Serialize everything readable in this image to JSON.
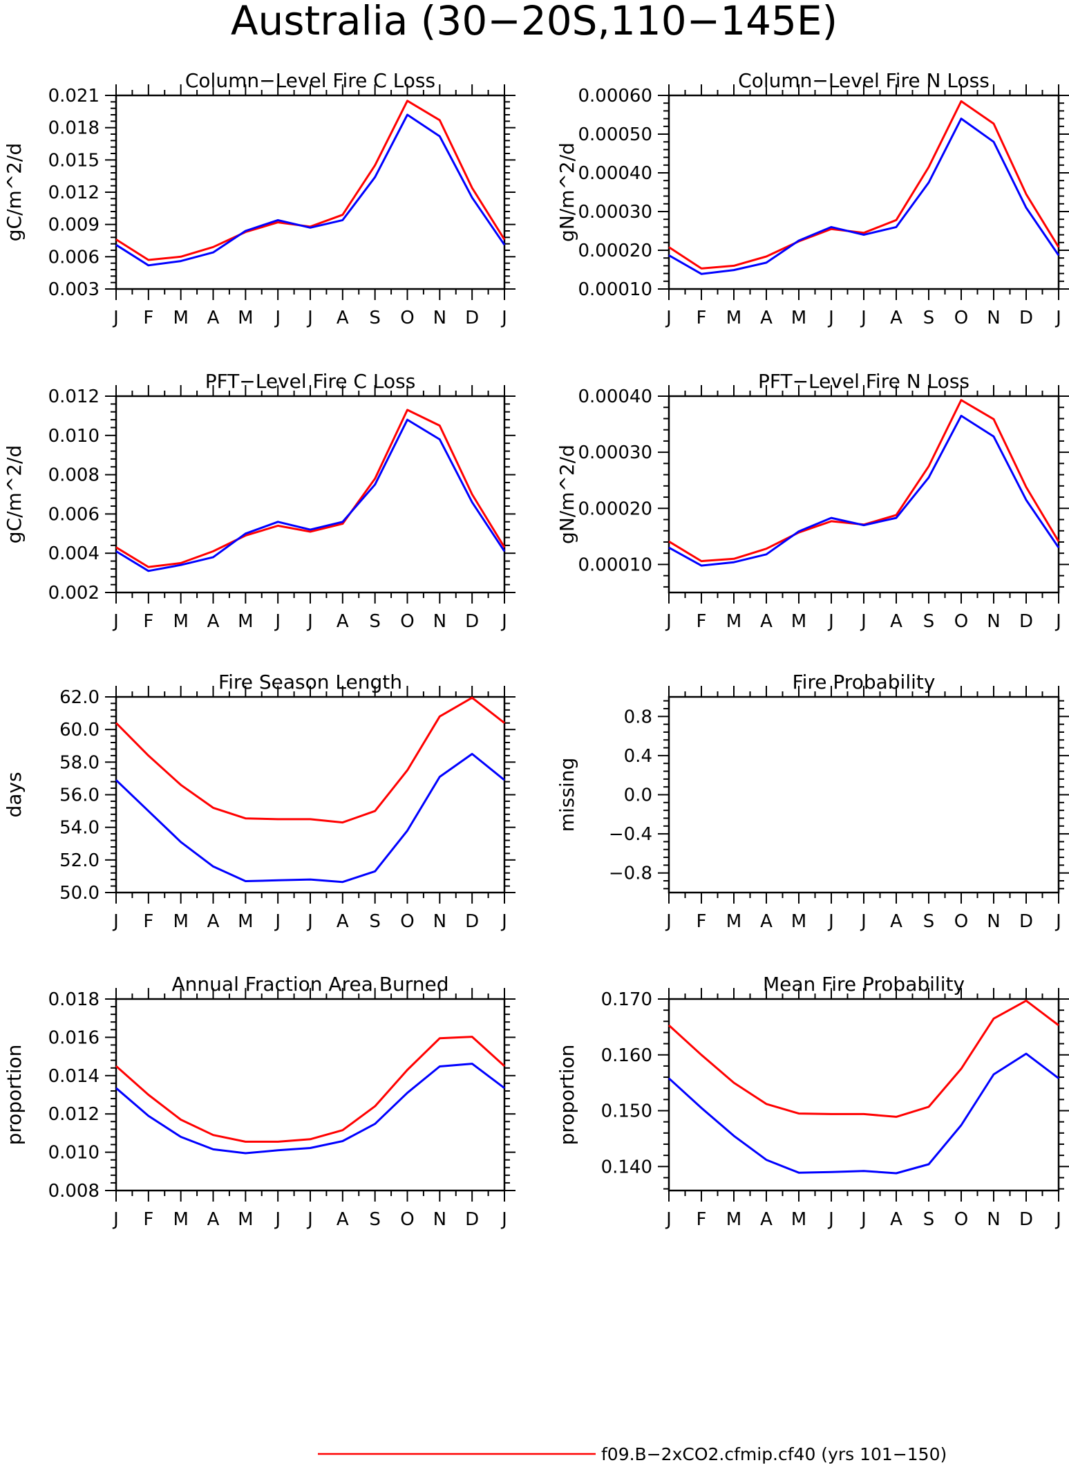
{
  "title": "Australia (30−20S,110−145E)",
  "legend": [
    {
      "label": "f09.B−2xCO2.cfmip.cf40 (yrs 101−150)",
      "color": "#ff0000"
    }
  ],
  "chart_data": [
    {
      "type": "line",
      "title": "Column−Level Fire C Loss",
      "ylabel": "gC/m^2/d",
      "categories": [
        "J",
        "F",
        "M",
        "A",
        "M",
        "J",
        "J",
        "A",
        "S",
        "O",
        "N",
        "D",
        "J"
      ],
      "yticks": [
        "0.003",
        "0.006",
        "0.009",
        "0.012",
        "0.015",
        "0.018",
        "0.021"
      ],
      "ylim": [
        0.003,
        0.021
      ],
      "series": [
        {
          "color": "#ff0000",
          "values": [
            0.0076,
            0.0057,
            0.006,
            0.0069,
            0.0083,
            0.0092,
            0.0088,
            0.0099,
            0.0145,
            0.0205,
            0.0187,
            0.0124,
            0.0076
          ]
        },
        {
          "color": "#0000ff",
          "values": [
            0.0071,
            0.0052,
            0.0056,
            0.0064,
            0.0084,
            0.0094,
            0.0087,
            0.0094,
            0.0134,
            0.0192,
            0.0172,
            0.0115,
            0.0071
          ]
        }
      ]
    },
    {
      "type": "line",
      "title": "Column−Level Fire N Loss",
      "ylabel": "gN/m^2/d",
      "categories": [
        "J",
        "F",
        "M",
        "A",
        "M",
        "J",
        "J",
        "A",
        "S",
        "O",
        "N",
        "D",
        "J"
      ],
      "yticks": [
        "0.00010",
        "0.00020",
        "0.00030",
        "0.00040",
        "0.00050",
        "0.00060"
      ],
      "ylim": [
        0.0001,
        0.0006
      ],
      "series": [
        {
          "color": "#ff0000",
          "values": [
            0.000208,
            0.000153,
            0.00016,
            0.000184,
            0.000223,
            0.000255,
            0.000245,
            0.000278,
            0.000415,
            0.000585,
            0.000527,
            0.000345,
            0.000208
          ]
        },
        {
          "color": "#0000ff",
          "values": [
            0.000187,
            0.000139,
            0.000149,
            0.000168,
            0.000225,
            0.00026,
            0.00024,
            0.00026,
            0.000375,
            0.00054,
            0.00048,
            0.00031,
            0.000187
          ]
        }
      ]
    },
    {
      "type": "line",
      "title": "PFT−Level Fire C Loss",
      "ylabel": "gC/m^2/d",
      "categories": [
        "J",
        "F",
        "M",
        "A",
        "M",
        "J",
        "J",
        "A",
        "S",
        "O",
        "N",
        "D",
        "J"
      ],
      "yticks": [
        "0.002",
        "0.004",
        "0.006",
        "0.008",
        "0.010",
        "0.012"
      ],
      "ylim": [
        0.002,
        0.012
      ],
      "series": [
        {
          "color": "#ff0000",
          "values": [
            0.0043,
            0.0033,
            0.0035,
            0.0041,
            0.0049,
            0.0054,
            0.0051,
            0.0055,
            0.0078,
            0.0113,
            0.0105,
            0.007,
            0.0043
          ]
        },
        {
          "color": "#0000ff",
          "values": [
            0.0041,
            0.0031,
            0.0034,
            0.0038,
            0.005,
            0.0056,
            0.0052,
            0.0056,
            0.0075,
            0.0108,
            0.0098,
            0.0066,
            0.0041
          ]
        }
      ]
    },
    {
      "type": "line",
      "title": "PFT−Level Fire N Loss",
      "ylabel": "gN/m^2/d",
      "categories": [
        "J",
        "F",
        "M",
        "A",
        "M",
        "J",
        "J",
        "A",
        "S",
        "O",
        "N",
        "D",
        "J"
      ],
      "yticks": [
        "0.00010",
        "0.00020",
        "0.00030",
        "0.00040"
      ],
      "ylim": [
        5e-05,
        0.0004
      ],
      "series": [
        {
          "color": "#ff0000",
          "values": [
            0.000141,
            0.000106,
            0.00011,
            0.000128,
            0.000157,
            0.000177,
            0.000171,
            0.000188,
            0.000275,
            0.000393,
            0.000359,
            0.000238,
            0.000141
          ]
        },
        {
          "color": "#0000ff",
          "values": [
            0.00013,
            9.8e-05,
            0.000104,
            0.000118,
            0.000159,
            0.000183,
            0.00017,
            0.000183,
            0.000255,
            0.000365,
            0.000328,
            0.000215,
            0.00013
          ]
        }
      ]
    },
    {
      "type": "line",
      "title": "Fire Season Length",
      "ylabel": "days",
      "categories": [
        "J",
        "F",
        "M",
        "A",
        "M",
        "J",
        "J",
        "A",
        "S",
        "O",
        "N",
        "D",
        "J"
      ],
      "yticks": [
        "50.0",
        "52.0",
        "54.0",
        "56.0",
        "58.0",
        "60.0",
        "62.0"
      ],
      "ylim": [
        50,
        62
      ],
      "series": [
        {
          "color": "#ff0000",
          "values": [
            60.4,
            58.4,
            56.6,
            55.2,
            54.55,
            54.5,
            54.5,
            54.3,
            55.0,
            57.5,
            60.8,
            61.95,
            60.4
          ]
        },
        {
          "color": "#0000ff",
          "values": [
            56.9,
            55.0,
            53.1,
            51.6,
            50.7,
            50.75,
            50.8,
            50.65,
            51.3,
            53.8,
            57.1,
            58.5,
            56.9
          ]
        }
      ]
    },
    {
      "type": "line",
      "title": "Fire Probability",
      "ylabel": "missing",
      "categories": [
        "J",
        "F",
        "M",
        "A",
        "M",
        "J",
        "J",
        "A",
        "S",
        "O",
        "N",
        "D",
        "J"
      ],
      "yticks": [
        "−0.8",
        "−0.4",
        "0.0",
        "0.4",
        "0.8"
      ],
      "ylim": [
        -1,
        1
      ],
      "series": []
    },
    {
      "type": "line",
      "title": "Annual Fraction Area Burned",
      "ylabel": "proportion",
      "categories": [
        "J",
        "F",
        "M",
        "A",
        "M",
        "J",
        "J",
        "A",
        "S",
        "O",
        "N",
        "D",
        "J"
      ],
      "yticks": [
        "0.008",
        "0.010",
        "0.012",
        "0.014",
        "0.016",
        "0.018"
      ],
      "ylim": [
        0.008,
        0.018
      ],
      "series": [
        {
          "color": "#ff0000",
          "values": [
            0.0145,
            0.013,
            0.0117,
            0.0109,
            0.01055,
            0.01055,
            0.01068,
            0.01115,
            0.0124,
            0.0143,
            0.01595,
            0.01603,
            0.0145
          ]
        },
        {
          "color": "#0000ff",
          "values": [
            0.01335,
            0.0119,
            0.0108,
            0.01015,
            0.00995,
            0.0101,
            0.01022,
            0.01058,
            0.01148,
            0.0131,
            0.01448,
            0.01462,
            0.01335
          ]
        }
      ]
    },
    {
      "type": "line",
      "title": "Mean Fire Probability",
      "ylabel": "proportion",
      "categories": [
        "J",
        "F",
        "M",
        "A",
        "M",
        "J",
        "J",
        "A",
        "S",
        "O",
        "N",
        "D",
        "J"
      ],
      "yticks": [
        "0.140",
        "0.150",
        "0.160",
        "0.170"
      ],
      "ylim": [
        0.1357,
        0.17
      ],
      "series": [
        {
          "color": "#ff0000",
          "values": [
            0.1653,
            0.16,
            0.155,
            0.1512,
            0.1495,
            0.1494,
            0.1494,
            0.1489,
            0.1507,
            0.1575,
            0.1665,
            0.1697,
            0.1653
          ]
        },
        {
          "color": "#0000ff",
          "values": [
            0.1558,
            0.1505,
            0.1455,
            0.1412,
            0.1389,
            0.139,
            0.1392,
            0.1388,
            0.1404,
            0.1474,
            0.1565,
            0.1602,
            0.1558
          ]
        }
      ]
    }
  ]
}
